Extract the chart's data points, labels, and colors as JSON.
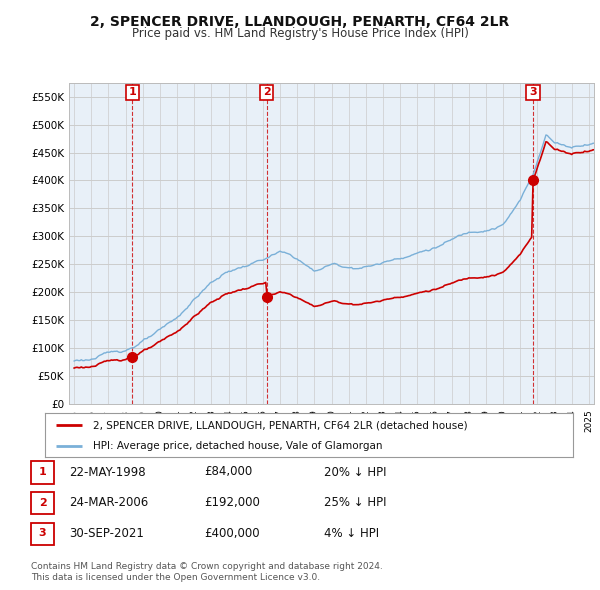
{
  "title": "2, SPENCER DRIVE, LLANDOUGH, PENARTH, CF64 2LR",
  "subtitle": "Price paid vs. HM Land Registry's House Price Index (HPI)",
  "ylim": [
    0,
    575000
  ],
  "yticks": [
    0,
    50000,
    100000,
    150000,
    200000,
    250000,
    300000,
    350000,
    400000,
    450000,
    500000,
    550000
  ],
  "ytick_labels": [
    "£0",
    "£50K",
    "£100K",
    "£150K",
    "£200K",
    "£250K",
    "£300K",
    "£350K",
    "£400K",
    "£450K",
    "£500K",
    "£550K"
  ],
  "xlim_start": 1994.7,
  "xlim_end": 2025.3,
  "sale_dates": [
    1998.388,
    2006.228,
    2021.747
  ],
  "sale_prices": [
    84000,
    192000,
    400000
  ],
  "sale_labels": [
    "1",
    "2",
    "3"
  ],
  "hpi_color": "#7ab0d8",
  "sale_color": "#cc0000",
  "legend_sale_label": "2, SPENCER DRIVE, LLANDOUGH, PENARTH, CF64 2LR (detached house)",
  "legend_hpi_label": "HPI: Average price, detached house, Vale of Glamorgan",
  "table_rows": [
    {
      "num": "1",
      "date": "22-MAY-1998",
      "price": "£84,000",
      "hpi": "20% ↓ HPI"
    },
    {
      "num": "2",
      "date": "24-MAR-2006",
      "price": "£192,000",
      "hpi": "25% ↓ HPI"
    },
    {
      "num": "3",
      "date": "30-SEP-2021",
      "price": "£400,000",
      "hpi": "4% ↓ HPI"
    }
  ],
  "footnote": "Contains HM Land Registry data © Crown copyright and database right 2024.\nThis data is licensed under the Open Government Licence v3.0.",
  "background_color": "#ffffff",
  "grid_color": "#cccccc",
  "plot_bg_color": "#e8f0f8"
}
